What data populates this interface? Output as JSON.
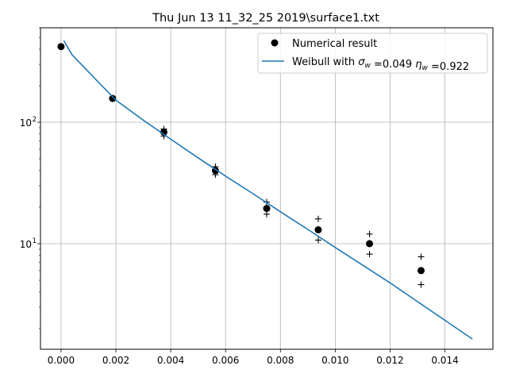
{
  "chart_data": {
    "type": "scatter",
    "title": "Thu Jun 13 11_32_25 2019\\surface1.txt",
    "xlabel": "",
    "ylabel": "",
    "xlim": [
      -0.00075,
      0.01575
    ],
    "ylim": [
      1.35,
      600
    ],
    "yscale": "log",
    "grid": true,
    "legend_placement": "top-right",
    "x_ticks": [
      0.0,
      0.002,
      0.004,
      0.006,
      0.008,
      0.01,
      0.012,
      0.014
    ],
    "x_tick_labels": [
      "0.000",
      "0.002",
      "0.004",
      "0.006",
      "0.008",
      "0.010",
      "0.012",
      "0.014"
    ],
    "y_ticks": [
      10,
      100
    ],
    "y_tick_base": "10",
    "y_tick_exponents": [
      "1",
      "2"
    ],
    "series": [
      {
        "name": "Numerical result",
        "marker": "circle",
        "color": "#000000",
        "x": [
          0.0,
          0.00188,
          0.00375,
          0.00563,
          0.0075,
          0.00938,
          0.01125,
          0.01313
        ],
        "y": [
          420,
          157,
          83,
          40,
          19.5,
          13,
          10,
          6
        ]
      },
      {
        "name": "",
        "marker": "plus",
        "color": "#000000",
        "x": [
          0.00375,
          0.00375,
          0.00563,
          0.00563,
          0.0075,
          0.0075,
          0.00938,
          0.00938,
          0.01125,
          0.01125,
          0.01313,
          0.01313
        ],
        "y": [
          88,
          77,
          43,
          37,
          22,
          17.5,
          16,
          10.7,
          12,
          8.2,
          7.8,
          4.6
        ]
      },
      {
        "name": "Weibull with",
        "name_parts": [
          "Weibull with ",
          "σ",
          "w",
          " =0.049 ",
          "η",
          "w",
          " =0.922"
        ],
        "marker": "line",
        "color": "#1f77b4",
        "x": [
          0.0001,
          0.0004,
          0.001,
          0.002,
          0.003,
          0.004,
          0.005,
          0.006,
          0.007,
          0.008,
          0.009,
          0.01,
          0.011,
          0.012,
          0.013,
          0.014,
          0.015
        ],
        "y": [
          470,
          360,
          260,
          152,
          104,
          72.5,
          51,
          36,
          25.8,
          18.3,
          13.1,
          9.3,
          6.65,
          4.75,
          3.33,
          2.34,
          1.64
        ]
      }
    ]
  }
}
